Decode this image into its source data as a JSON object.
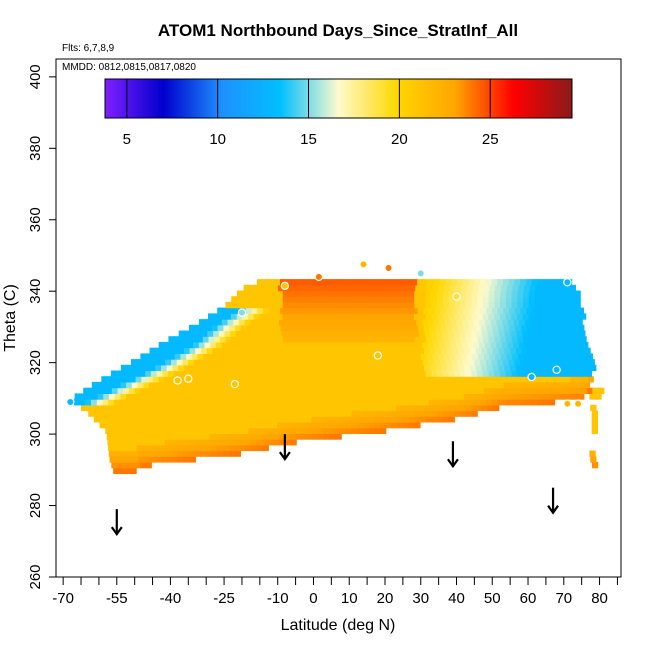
{
  "chart_data": {
    "type": "heatmap",
    "title": "ATOM1 Northbound Days_Since_StratInf_All",
    "flights_label": "Flts: 6,7,8,9",
    "dates_label": "MMDD: 0812,0815,0817,0820",
    "xlabel": "Latitude (deg N)",
    "ylabel": "Theta (C)",
    "xlim": [
      -72,
      86
    ],
    "ylim": [
      260,
      405
    ],
    "x_ticks": [
      -70,
      -55,
      -40,
      -25,
      -10,
      0,
      10,
      20,
      30,
      40,
      50,
      60,
      70,
      80
    ],
    "x_tick_labels": [
      "-70",
      "-55",
      "-40",
      "-25",
      "-10",
      "0",
      "10",
      "20",
      "30",
      "40",
      "50",
      "60",
      "70",
      "80"
    ],
    "x_minor_ticks": [
      -65,
      -60,
      -50,
      -45,
      -35,
      -30,
      -20,
      -15,
      -5,
      5,
      15,
      25,
      35,
      45,
      55,
      65,
      75,
      85
    ],
    "y_ticks": [
      260,
      280,
      300,
      320,
      340,
      360,
      380,
      400
    ],
    "y_tick_labels": [
      "260",
      "280",
      "300",
      "320",
      "340",
      "360",
      "380",
      "400"
    ],
    "colorbar": {
      "min": 3.8,
      "max": 29.5,
      "ticks": [
        5,
        10,
        15,
        20,
        25
      ],
      "tick_labels": [
        "5",
        "10",
        "15",
        "20",
        "25"
      ],
      "colors": [
        "#7f1fff",
        "#0000cd",
        "#1e90ff",
        "#00bfff",
        "#fffacd",
        "#ffd700",
        "#ffa500",
        "#ff0000",
        "#8b1a1a"
      ]
    },
    "field": {
      "description": "days since stratospheric influence over latitude/theta",
      "left_boundary": [
        [
          289,
          -56
        ],
        [
          292,
          -57
        ],
        [
          296,
          -57.5
        ],
        [
          300,
          -58
        ],
        [
          305,
          -63
        ],
        [
          309,
          -68
        ],
        [
          313,
          -62
        ],
        [
          316,
          -57
        ],
        [
          320,
          -50
        ],
        [
          325,
          -42
        ],
        [
          330,
          -33
        ],
        [
          335,
          -25
        ],
        [
          340,
          -20
        ],
        [
          343,
          -13
        ]
      ],
      "right_boundary": [
        [
          343,
          0
        ],
        [
          345,
          20
        ],
        [
          344,
          55
        ],
        [
          343,
          70
        ],
        [
          338,
          74
        ],
        [
          330,
          75
        ],
        [
          322,
          77
        ],
        [
          318,
          78
        ],
        [
          312,
          77
        ],
        [
          309,
          75
        ],
        [
          307,
          52
        ],
        [
          304,
          42
        ],
        [
          301,
          25
        ],
        [
          299,
          10
        ],
        [
          297,
          -5
        ],
        [
          294,
          -20
        ],
        [
          292,
          -35
        ],
        [
          290,
          -50
        ]
      ],
      "blue_band_nw": [
        [
          307,
          -67,
          14
        ],
        [
          312,
          -57,
          14
        ],
        [
          318,
          -45,
          13
        ],
        [
          324,
          -35,
          14
        ],
        [
          330,
          -28,
          14
        ],
        [
          334,
          -22,
          15
        ]
      ],
      "blue_region_ne": {
        "lat_range": [
          30,
          75
        ],
        "theta_range": [
          316,
          343
        ],
        "value": 13
      },
      "background_value": 21,
      "bottom_band_value": 24
    },
    "obs_points": [
      {
        "lat": -68,
        "theta": 309,
        "value": 13
      },
      {
        "lat": -38,
        "theta": 315,
        "value": 21
      },
      {
        "lat": -35,
        "theta": 315.5,
        "value": 21
      },
      {
        "lat": -22,
        "theta": 314,
        "value": 21
      },
      {
        "lat": -20,
        "theta": 334,
        "value": 15
      },
      {
        "lat": -8,
        "theta": 341.5,
        "value": 21
      },
      {
        "lat": 1.5,
        "theta": 344,
        "value": 24
      },
      {
        "lat": 14,
        "theta": 347.5,
        "value": 22
      },
      {
        "lat": 18,
        "theta": 322,
        "value": 21
      },
      {
        "lat": 21,
        "theta": 346.5,
        "value": 24
      },
      {
        "lat": 30,
        "theta": 345,
        "value": 15
      },
      {
        "lat": 40,
        "theta": 338.5,
        "value": 19
      },
      {
        "lat": 61,
        "theta": 316,
        "value": 13
      },
      {
        "lat": 68,
        "theta": 318,
        "value": 13
      },
      {
        "lat": 71,
        "theta": 342.5,
        "value": 13
      },
      {
        "lat": 71,
        "theta": 308.5,
        "value": 22
      },
      {
        "lat": 74,
        "theta": 308.5,
        "value": 22
      }
    ],
    "arrows": [
      {
        "lat": -55,
        "theta_top": 279,
        "theta_bottom": 272
      },
      {
        "lat": -8,
        "theta_top": 300,
        "theta_bottom": 293
      },
      {
        "lat": 39,
        "theta_top": 298,
        "theta_bottom": 291
      },
      {
        "lat": 67,
        "theta_top": 285,
        "theta_bottom": 278
      }
    ]
  }
}
